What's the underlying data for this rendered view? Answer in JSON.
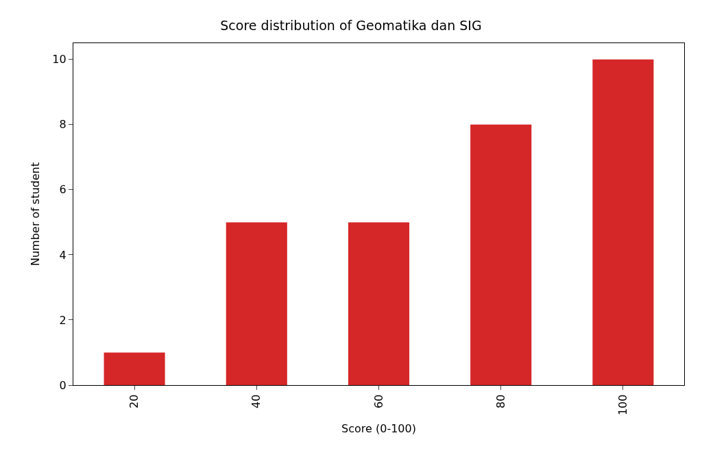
{
  "chart_data": {
    "type": "bar",
    "title": "Score distribution of Geomatika dan SIG",
    "xlabel": "Score (0-100)",
    "ylabel": "Number of student",
    "categories": [
      "20",
      "40",
      "60",
      "80",
      "100"
    ],
    "values": [
      1,
      5,
      5,
      8,
      10
    ],
    "color": "#d62728",
    "ylim": [
      0,
      10.5
    ],
    "yticks": [
      0,
      2,
      4,
      6,
      8,
      10
    ],
    "grid": false,
    "legend": false
  }
}
